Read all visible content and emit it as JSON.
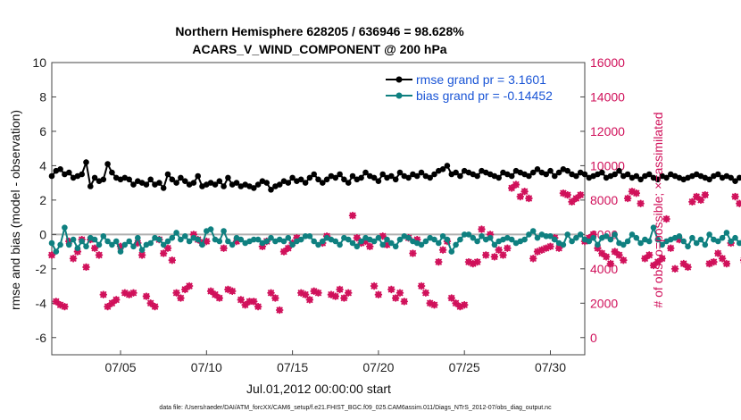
{
  "chart_data": {
    "type": "line",
    "title": "Northern Hemisphere 628205 / 636946 = 98.628%",
    "subtitle": "ACARS_V_WIND_COMPONENT @ 200 hPa",
    "xlabel": "Jul.01,2012 00:00:00 start",
    "ylabel": "rmse and bias (model - observation)",
    "ylabel_right": "# of obs: o=possible; ×=assimilated",
    "xlim": [
      1,
      32
    ],
    "ylim": [
      -7,
      10
    ],
    "ylim_right": [
      -1000,
      16000
    ],
    "x_ticks": [
      5,
      10,
      15,
      20,
      25,
      30
    ],
    "x_tick_labels": [
      "07/05",
      "07/10",
      "07/15",
      "07/20",
      "07/25",
      "07/30"
    ],
    "y_ticks": [
      -6,
      -4,
      -2,
      0,
      2,
      4,
      6,
      8,
      10
    ],
    "y_tick_labels": [
      "-6",
      "-4",
      "-2",
      "0",
      "2",
      "4",
      "6",
      "8",
      "10"
    ],
    "y_right_ticks": [
      0,
      2000,
      4000,
      6000,
      8000,
      10000,
      12000,
      14000,
      16000
    ],
    "y_right_tick_labels": [
      "0",
      "2000",
      "4000",
      "6000",
      "8000",
      "10000",
      "12000",
      "14000",
      "16000"
    ],
    "legend": [
      "rmse grand pr = 3.1601",
      "bias grand pr = -0.14452"
    ],
    "legend_position": "top-right",
    "grid": false,
    "colors": {
      "rmse": "#000000",
      "bias": "#0f8080",
      "obs": "#d0105a",
      "zero": "#b0b0b0"
    },
    "time_step_days": 0.25,
    "x_start": 1.0,
    "series": [
      {
        "name": "rmse",
        "axis": "left",
        "values": [
          3.4,
          3.7,
          3.8,
          3.5,
          3.6,
          3.3,
          3.4,
          3.5,
          4.2,
          2.8,
          3.3,
          3.1,
          3.2,
          4.1,
          3.6,
          3.3,
          3.2,
          3.3,
          3.2,
          2.9,
          3.1,
          3.0,
          2.9,
          3.2,
          2.9,
          3.0,
          2.7,
          3.5,
          3.2,
          3.0,
          3.3,
          3.1,
          2.9,
          3.0,
          3.4,
          2.8,
          2.9,
          3.0,
          2.9,
          3.1,
          2.8,
          3.3,
          2.9,
          3.0,
          2.8,
          2.9,
          2.8,
          2.7,
          2.9,
          3.1,
          3.0,
          2.6,
          2.8,
          2.9,
          3.1,
          3.0,
          3.3,
          3.1,
          3.2,
          3.0,
          3.3,
          3.5,
          3.2,
          3.0,
          3.2,
          3.4,
          3.3,
          3.5,
          3.2,
          3.0,
          3.4,
          3.2,
          3.3,
          3.6,
          3.4,
          3.3,
          3.1,
          3.5,
          3.3,
          3.4,
          3.2,
          3.6,
          3.4,
          3.3,
          3.5,
          3.4,
          3.6,
          3.4,
          3.3,
          3.5,
          3.7,
          3.8,
          4.0,
          3.5,
          3.6,
          3.4,
          3.7,
          3.6,
          3.5,
          3.4,
          3.7,
          3.6,
          3.5,
          3.4,
          3.3,
          3.6,
          3.5,
          3.4,
          3.7,
          3.6,
          3.5,
          3.4,
          3.6,
          3.8,
          3.6,
          3.5,
          3.7,
          3.4,
          3.6,
          3.8,
          3.7,
          3.5,
          3.4,
          3.6,
          3.5,
          3.3,
          3.4,
          3.5,
          3.6,
          3.3,
          3.4,
          3.5,
          3.7,
          3.4,
          3.5,
          3.3,
          3.4,
          3.2,
          3.4,
          3.5,
          3.3,
          3.2,
          3.4,
          3.3,
          3.5,
          3.4,
          3.3,
          3.2,
          3.3,
          3.4,
          3.5,
          3.4,
          3.3,
          3.2,
          3.4,
          3.5,
          3.3,
          3.4,
          3.3,
          3.1,
          3.3,
          3.2,
          3.3,
          3.5,
          3.4,
          3.3,
          3.2,
          3.4,
          3.3,
          3.5,
          3.4,
          3.3,
          3.2,
          3.4,
          3.3,
          3.1,
          3.4,
          3.2,
          3.4,
          3.3,
          3.6,
          3.3,
          3.5,
          3.4,
          3.3,
          3.2,
          3.4,
          3.3,
          3.5,
          3.3,
          3.4,
          3.2,
          3.3,
          3.0,
          3.2,
          3.4,
          3.1,
          2.9,
          3.3,
          3.2,
          3.4,
          3.0,
          3.2,
          3.5,
          3.3,
          3.4,
          3.2,
          3.1,
          3.3,
          3.4,
          3.5,
          3.3,
          3.2,
          3.1,
          3.3,
          3.5,
          3.4,
          3.3,
          3.6,
          3.4
        ]
      },
      {
        "name": "bias",
        "axis": "left",
        "values": [
          -0.5,
          -1.0,
          -0.6,
          0.4,
          -0.6,
          -0.3,
          -0.8,
          -0.4,
          -0.7,
          -0.2,
          -0.3,
          -0.6,
          -0.1,
          -0.4,
          -0.6,
          -0.4,
          -1.0,
          -0.6,
          -0.4,
          -0.7,
          -0.2,
          -0.9,
          -0.6,
          -0.5,
          -0.2,
          -0.3,
          -0.6,
          -0.4,
          -0.2,
          0.1,
          -0.3,
          -0.1,
          -0.4,
          -0.2,
          -0.3,
          -0.6,
          0.2,
          0.3,
          -0.3,
          -0.4,
          0.2,
          -0.4,
          -0.6,
          -0.2,
          -0.3,
          -0.5,
          -0.4,
          -0.3,
          -0.3,
          -0.5,
          -0.4,
          -0.2,
          -0.4,
          -0.3,
          -0.4,
          -0.2,
          -0.6,
          -0.4,
          -0.3,
          -0.1,
          -0.1,
          -0.4,
          -0.6,
          -0.4,
          -0.2,
          -0.3,
          -0.4,
          -0.6,
          -0.2,
          -0.3,
          -0.5,
          -0.7,
          -0.4,
          -0.2,
          -0.3,
          -0.4,
          -0.2,
          -0.6,
          -0.3,
          -0.5,
          -0.7,
          -0.3,
          -0.1,
          -0.2,
          -0.4,
          -0.5,
          -0.6,
          -0.4,
          -0.2,
          -0.3,
          -0.5,
          -0.1,
          -0.3,
          -1.0,
          -0.6,
          -0.3,
          0.0,
          0.0,
          -0.2,
          -0.4,
          -0.1,
          -0.3,
          -0.2,
          -0.6,
          -0.4,
          -0.3,
          -0.2,
          -0.3,
          -0.5,
          -0.4,
          -0.3,
          0.0,
          0.2,
          -0.2,
          0.0,
          -0.1,
          -0.1,
          -0.3,
          -0.5,
          -0.6,
          0.0,
          -0.4,
          -0.2,
          0.0,
          -0.3,
          -0.4,
          -0.2,
          -0.6,
          -0.2,
          -0.1,
          -0.3,
          0.0,
          -0.5,
          -0.6,
          -0.4,
          0.0,
          -0.2,
          -0.5,
          -0.3,
          -0.4,
          0.4,
          -0.3,
          -0.6,
          -0.4,
          -0.3,
          -0.2,
          -0.1,
          -0.4,
          -0.7,
          -0.2,
          -0.5,
          -0.3,
          -0.6,
          0.0,
          -0.3,
          -0.4,
          -0.2,
          0.1,
          -0.4,
          -0.2,
          -0.5,
          -0.3,
          -0.7,
          -0.4,
          -0.2,
          -0.5,
          -0.3,
          -0.6,
          -0.2,
          -0.4,
          0.2,
          -0.4,
          -0.3,
          -0.5,
          -0.2,
          -0.6,
          -0.3,
          -0.1,
          -0.4,
          -0.8,
          0.0,
          -0.2,
          -0.3,
          -0.5,
          -0.1,
          -0.3,
          -0.2,
          -0.6,
          -0.4,
          -0.2,
          0.3,
          0.0,
          -0.5,
          -0.4,
          -0.2,
          -0.6,
          0.0,
          0.0,
          0.0,
          0.0,
          -0.1,
          0.7,
          0.6,
          0.0,
          -0.5,
          -0.1,
          -0.3,
          -0.3,
          -0.7,
          -0.4,
          -0.3,
          -0.2,
          -0.2,
          -0.3,
          -0.4,
          -0.5,
          -0.3,
          -0.2,
          -0.4,
          -0.5
        ]
      },
      {
        "name": "obs_assimilated",
        "axis": "right",
        "values": [
          4800,
          2100,
          1900,
          1800,
          5600,
          4600,
          5000,
          5700,
          4100,
          5700,
          5200,
          4800,
          2500,
          1800,
          2000,
          2200,
          5300,
          2600,
          2500,
          2600,
          5500,
          4800,
          2400,
          2000,
          1800,
          5700,
          4900,
          5200,
          4500,
          2600,
          2300,
          2800,
          3000,
          6000,
          5700,
          5500,
          5600,
          2700,
          2500,
          2300,
          5200,
          2800,
          2700,
          5600,
          2200,
          1900,
          2100,
          2100,
          1800,
          5300,
          5600,
          2600,
          2300,
          1600,
          5000,
          5200,
          5500,
          5800,
          2600,
          2500,
          2200,
          2700,
          2600,
          5500,
          5900,
          2500,
          2400,
          2800,
          2300,
          2600,
          7100,
          5800,
          5500,
          5600,
          5300,
          3000,
          2500,
          5900,
          5400,
          2800,
          2300,
          2600,
          2100,
          5800,
          4900,
          5700,
          3000,
          2600,
          2000,
          1900,
          4400,
          5100,
          5600,
          2300,
          2000,
          1800,
          1900,
          4400,
          4300,
          4400,
          6300,
          4800,
          6000,
          4700,
          5100,
          4800,
          5200,
          8700,
          8900,
          8200,
          8500,
          8100,
          4600,
          5000,
          5100,
          5200,
          5300,
          5800,
          5200,
          8400,
          8300,
          7900,
          8100,
          8300,
          5600,
          5800,
          6000,
          5200,
          4900,
          4700,
          4300,
          5000,
          4800,
          4500,
          8100,
          8500,
          8400,
          7800,
          4600,
          4800,
          4200,
          4400,
          4600,
          6900,
          5200,
          4000,
          5700,
          4300,
          4100,
          7900,
          8200,
          8000,
          8300,
          4300,
          4400,
          4900,
          4600,
          4300,
          5500,
          8200,
          7800,
          4500,
          4700,
          5200,
          4900,
          5300,
          4400,
          3800,
          8400,
          8700,
          8800,
          8200,
          4700,
          5000,
          4800,
          5100,
          4500,
          4300,
          8200,
          8400,
          8300,
          8600,
          4800,
          4400,
          5200,
          4900,
          3100,
          5600,
          5000,
          7800,
          8100,
          7800,
          8400,
          7700,
          4600,
          4700,
          5000,
          3900,
          3000,
          3000,
          2900,
          7500,
          7200,
          8300,
          5100,
          4400,
          4400,
          4000,
          3900,
          3700,
          8200,
          8500,
          7800,
          7900,
          7900,
          8200,
          8300,
          8800,
          0
        ]
      },
      {
        "name": "obs_possible",
        "axis": "right",
        "values": [
          4800,
          2100,
          1900,
          1800,
          5600,
          4600,
          5000,
          5700,
          4100,
          5700,
          5200,
          4800,
          2500,
          1800,
          2000,
          2200,
          5300,
          2600,
          2500,
          2600,
          5500,
          4800,
          2400,
          2000,
          1800,
          5700,
          4900,
          5200,
          4500,
          2600,
          2300,
          2800,
          3000,
          6000,
          5700,
          5500,
          5600,
          2700,
          2500,
          2300,
          5200,
          2800,
          2700,
          5600,
          2200,
          1900,
          2100,
          2100,
          1800,
          5300,
          5600,
          2600,
          2300,
          1600,
          5000,
          5200,
          5500,
          5800,
          2600,
          2500,
          2200,
          2700,
          2600,
          5500,
          5900,
          2500,
          2400,
          2800,
          2300,
          2600,
          7100,
          5800,
          5500,
          5600,
          5300,
          3000,
          2500,
          5900,
          5400,
          2800,
          2300,
          2600,
          2100,
          5800,
          4900,
          5700,
          3000,
          2600,
          2000,
          1900,
          4400,
          5100,
          5600,
          2300,
          2000,
          1800,
          1900,
          4400,
          4300,
          4400,
          6300,
          4800,
          6000,
          4700,
          5100,
          4800,
          5200,
          8700,
          8900,
          8200,
          8500,
          8100,
          4600,
          5000,
          5100,
          5200,
          5300,
          5800,
          5200,
          8400,
          8300,
          7900,
          8100,
          8300,
          5600,
          5800,
          6000,
          5200,
          4900,
          4700,
          4300,
          5000,
          4800,
          4500,
          8100,
          8500,
          8400,
          7800,
          4600,
          4800,
          4200,
          4400,
          4600,
          6900,
          5200,
          4000,
          5700,
          4300,
          4100,
          7900,
          8200,
          8000,
          8300,
          4300,
          4400,
          4900,
          4600,
          4300,
          5500,
          8200,
          7800,
          4500,
          4700,
          5200,
          4900,
          5300,
          4400,
          3800,
          8400,
          8700,
          8800,
          8200,
          4700,
          5000,
          4800,
          5100,
          4500,
          4300,
          8200,
          8400,
          8300,
          8600,
          4800,
          4400,
          5200,
          4900,
          3100,
          5600,
          5000,
          7800,
          8100,
          7800,
          8400,
          7700,
          4600,
          4700,
          5000,
          3900,
          3000,
          3000,
          2900,
          7500,
          7200,
          8300,
          5100,
          4400,
          4400,
          4000,
          3900,
          3700,
          8200,
          8500,
          7800,
          7900,
          7900,
          8200,
          8300,
          8800,
          0
        ]
      }
    ]
  },
  "footer": "data file: /Users/raeder/DAI/ATM_forcXX/CAM6_setup/f.e21.FHIST_BGC.f09_025.CAM6assim.011/Diags_NTrS_2012-07/obs_diag_output.nc"
}
